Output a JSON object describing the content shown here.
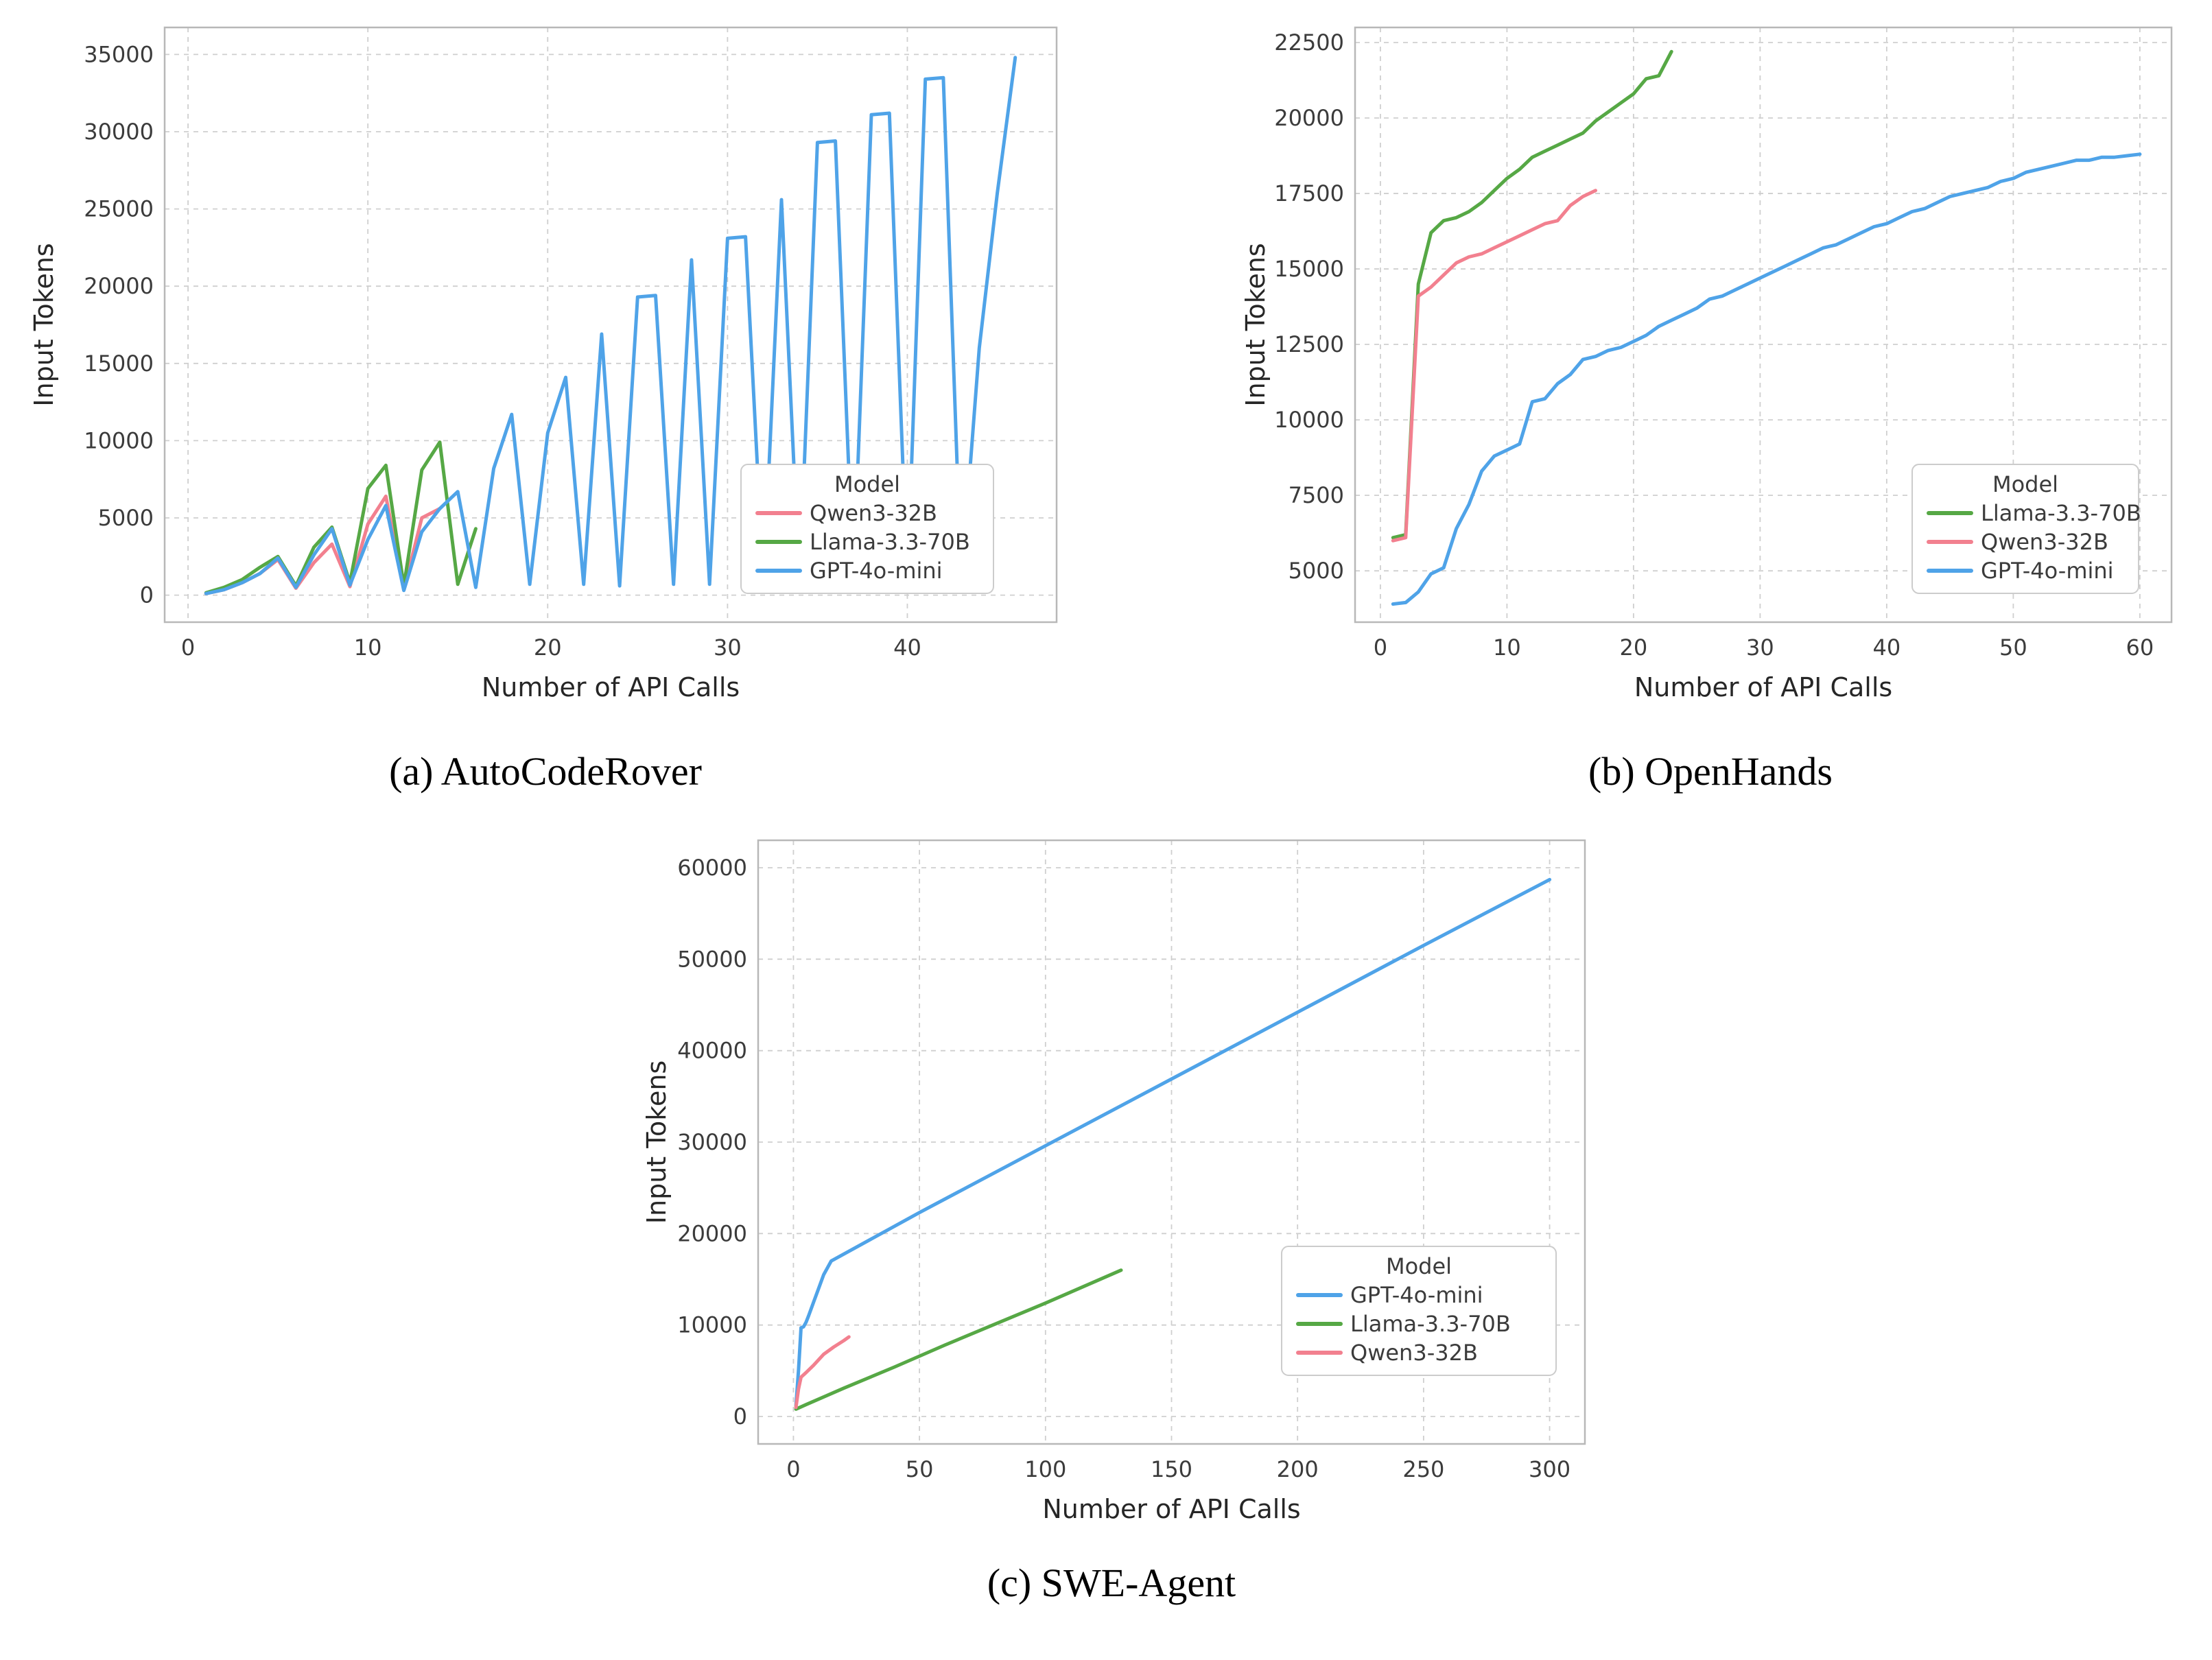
{
  "page": {
    "background": "#ffffff"
  },
  "chart_data": [
    {
      "id": "autocoderover",
      "type": "line",
      "caption": "(a) AutoCodeRover",
      "xlabel": "Number of API Calls",
      "ylabel": "Input Tokens",
      "xlim": [
        -1.3,
        48.3
      ],
      "ylim": [
        -1750,
        36750
      ],
      "xticks": [
        0,
        10,
        20,
        30,
        40
      ],
      "yticks": [
        0,
        5000,
        10000,
        15000,
        20000,
        25000,
        30000,
        35000
      ],
      "grid": true,
      "legend": {
        "title": "Model",
        "position": "lower right"
      },
      "series": [
        {
          "name": "Qwen3-32B",
          "color": "#F2808F",
          "x": [
            1,
            2,
            3,
            4,
            5,
            6,
            7,
            8,
            9,
            10,
            11,
            12,
            13,
            14
          ],
          "y": [
            100,
            350,
            800,
            1400,
            2300,
            450,
            2100,
            3300,
            550,
            4600,
            6400,
            350,
            5000,
            5600
          ]
        },
        {
          "name": "Llama-3.3-70B",
          "color": "#56A845",
          "x": [
            1,
            2,
            3,
            4,
            5,
            6,
            7,
            8,
            9,
            10,
            11,
            12,
            13,
            14,
            15,
            16
          ],
          "y": [
            150,
            500,
            1000,
            1800,
            2500,
            600,
            3100,
            4400,
            800,
            6900,
            8400,
            600,
            8100,
            9900,
            700,
            4300
          ]
        },
        {
          "name": "GPT-4o-mini",
          "color": "#4FA3E8",
          "x": [
            1,
            2,
            3,
            4,
            5,
            6,
            7,
            8,
            9,
            10,
            11,
            12,
            13,
            14,
            15,
            16,
            17,
            18,
            19,
            20,
            21,
            22,
            23,
            24,
            25,
            26,
            27,
            28,
            29,
            30,
            31,
            32,
            33,
            34,
            35,
            36,
            37,
            38,
            39,
            40,
            41,
            42,
            43,
            44,
            45,
            46
          ],
          "y": [
            100,
            350,
            800,
            1400,
            2400,
            500,
            2600,
            4300,
            650,
            3600,
            5800,
            300,
            4100,
            5600,
            6700,
            500,
            8200,
            11700,
            700,
            10500,
            14100,
            700,
            16900,
            600,
            19300,
            19400,
            700,
            21700,
            700,
            23100,
            23200,
            700,
            25600,
            700,
            29300,
            29400,
            800,
            31100,
            31200,
            800,
            33400,
            33500,
            800,
            16000,
            26000,
            34800
          ]
        }
      ]
    },
    {
      "id": "openhands",
      "type": "line",
      "caption": "(b) OpenHands",
      "xlabel": "Number of API Calls",
      "ylabel": "Input Tokens",
      "xlim": [
        -2,
        62.5
      ],
      "ylim": [
        3300,
        23000
      ],
      "xticks": [
        0,
        10,
        20,
        30,
        40,
        50,
        60
      ],
      "yticks": [
        5000,
        7500,
        10000,
        12500,
        15000,
        17500,
        20000,
        22500
      ],
      "grid": true,
      "legend": {
        "title": "Model",
        "position": "lower right"
      },
      "series": [
        {
          "name": "Llama-3.3-70B",
          "color": "#56A845",
          "x": [
            1,
            2,
            3,
            4,
            5,
            6,
            7,
            8,
            9,
            10,
            11,
            12,
            13,
            14,
            15,
            16,
            17,
            18,
            19,
            20,
            21,
            22,
            23
          ],
          "y": [
            6100,
            6200,
            14500,
            16200,
            16600,
            16700,
            16900,
            17200,
            17600,
            18000,
            18300,
            18700,
            18900,
            19100,
            19300,
            19500,
            19900,
            20200,
            20500,
            20800,
            21300,
            21400,
            22200
          ]
        },
        {
          "name": "Qwen3-32B",
          "color": "#F2808F",
          "x": [
            1,
            2,
            3,
            4,
            5,
            6,
            7,
            8,
            9,
            10,
            11,
            12,
            13,
            14,
            15,
            16,
            17
          ],
          "y": [
            6000,
            6100,
            14100,
            14400,
            14800,
            15200,
            15400,
            15500,
            15700,
            15900,
            16100,
            16300,
            16500,
            16600,
            17100,
            17400,
            17600
          ]
        },
        {
          "name": "GPT-4o-mini",
          "color": "#4FA3E8",
          "x": [
            1,
            2,
            3,
            4,
            5,
            6,
            7,
            8,
            9,
            10,
            11,
            12,
            13,
            14,
            15,
            16,
            17,
            18,
            19,
            20,
            21,
            22,
            23,
            24,
            25,
            26,
            27,
            28,
            29,
            30,
            31,
            32,
            33,
            34,
            35,
            36,
            37,
            38,
            39,
            40,
            41,
            42,
            43,
            44,
            45,
            46,
            47,
            48,
            49,
            50,
            51,
            52,
            53,
            54,
            55,
            56,
            57,
            58,
            59,
            60
          ],
          "y": [
            3900,
            3950,
            4300,
            4900,
            5100,
            6400,
            7200,
            8300,
            8800,
            9000,
            9200,
            10600,
            10700,
            11200,
            11500,
            12000,
            12100,
            12300,
            12400,
            12600,
            12800,
            13100,
            13300,
            13500,
            13700,
            14000,
            14100,
            14300,
            14500,
            14700,
            14900,
            15100,
            15300,
            15500,
            15700,
            15800,
            16000,
            16200,
            16400,
            16500,
            16700,
            16900,
            17000,
            17200,
            17400,
            17500,
            17600,
            17700,
            17900,
            18000,
            18200,
            18300,
            18400,
            18500,
            18600,
            18600,
            18700,
            18700,
            18750,
            18800
          ]
        }
      ]
    },
    {
      "id": "swe-agent",
      "type": "line",
      "caption": "(c) SWE-Agent",
      "xlabel": "Number of API Calls",
      "ylabel": "Input Tokens",
      "xlim": [
        -14,
        314
      ],
      "ylim": [
        -3000,
        63000
      ],
      "xticks": [
        0,
        50,
        100,
        150,
        200,
        250,
        300
      ],
      "yticks": [
        0,
        10000,
        20000,
        30000,
        40000,
        50000,
        60000
      ],
      "grid": true,
      "legend": {
        "title": "Model",
        "position": "lower right"
      },
      "series": [
        {
          "name": "GPT-4o-mini",
          "color": "#4FA3E8",
          "x": [
            1,
            2,
            3,
            4,
            5,
            6,
            8,
            10,
            12,
            15,
            50,
            100,
            150,
            200,
            250,
            300
          ],
          "y": [
            1200,
            5000,
            9700,
            9800,
            10300,
            11000,
            12500,
            14000,
            15500,
            17000,
            22300,
            29600,
            36900,
            44200,
            51500,
            58700
          ]
        },
        {
          "name": "Llama-3.3-70B",
          "color": "#56A845",
          "x": [
            1,
            5,
            20,
            40,
            60,
            80,
            100,
            120,
            130
          ],
          "y": [
            800,
            1300,
            3100,
            5400,
            7800,
            10100,
            12400,
            14800,
            16000
          ]
        },
        {
          "name": "Qwen3-32B",
          "color": "#F2808F",
          "x": [
            1,
            2,
            3,
            5,
            8,
            12,
            16,
            20,
            22
          ],
          "y": [
            1000,
            3000,
            4300,
            4800,
            5600,
            6800,
            7600,
            8300,
            8700
          ]
        }
      ]
    }
  ]
}
